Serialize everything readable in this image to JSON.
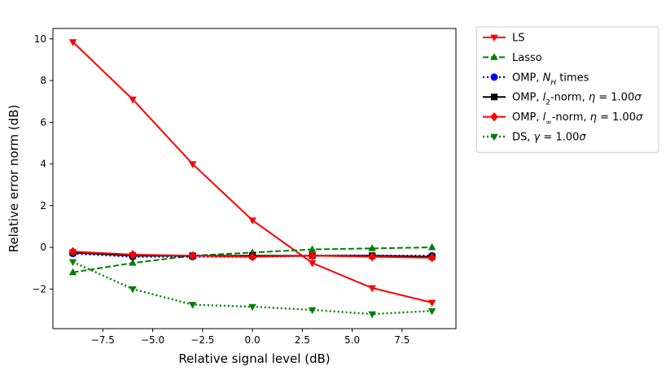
{
  "chart_data": {
    "type": "line",
    "title": "",
    "xlabel": "Relative signal level (dB)",
    "ylabel": "Relative error norm (dB)",
    "xlim": [
      -10.0,
      10.2
    ],
    "ylim": [
      -3.9,
      10.5
    ],
    "xticks": [
      -7.5,
      -5.0,
      -2.5,
      0.0,
      2.5,
      5.0,
      7.5
    ],
    "xtick_labels": [
      "−7.5",
      "−5.0",
      "−2.5",
      "0.0",
      "2.5",
      "5.0",
      "7.5"
    ],
    "yticks": [
      -2,
      0,
      2,
      4,
      6,
      8,
      10
    ],
    "ytick_labels": [
      "−2",
      "0",
      "2",
      "4",
      "6",
      "8",
      "10"
    ],
    "grid": false,
    "legend_position": "outside-top-right",
    "x": [
      -9,
      -6,
      -3,
      0,
      3,
      6,
      9
    ],
    "series": [
      {
        "name": "LS",
        "label_parts": [
          {
            "t": "LS"
          }
        ],
        "color": "#ff0000",
        "marker": "triangle-down",
        "dash": "solid",
        "values": [
          9.85,
          7.1,
          4.0,
          1.3,
          -0.75,
          -1.95,
          -2.65
        ]
      },
      {
        "name": "Lasso",
        "label_parts": [
          {
            "t": "Lasso"
          }
        ],
        "color": "#008000",
        "marker": "triangle-up",
        "dash": "dashed",
        "values": [
          -1.2,
          -0.75,
          -0.4,
          -0.25,
          -0.1,
          -0.05,
          0.0
        ]
      },
      {
        "name": "OMP, N_H times",
        "label_parts": [
          {
            "t": "OMP, "
          },
          {
            "t": "N",
            "i": true
          },
          {
            "t": "H",
            "i": true,
            "sub": true
          },
          {
            "t": " times"
          }
        ],
        "color": "#0000ff",
        "marker": "circle",
        "dash": "dotted",
        "values": [
          -0.3,
          -0.45,
          -0.45,
          -0.45,
          -0.4,
          -0.4,
          -0.4
        ]
      },
      {
        "name": "OMP, l2-norm, η = 1.00σ",
        "label_parts": [
          {
            "t": "OMP, "
          },
          {
            "t": "l",
            "i": true
          },
          {
            "t": "2",
            "sub": true
          },
          {
            "t": "-norm, "
          },
          {
            "t": "η",
            "i": true
          },
          {
            "t": " = 1.00"
          },
          {
            "t": "σ",
            "i": true
          }
        ],
        "color": "#000000",
        "marker": "square",
        "dash": "solid",
        "values": [
          -0.25,
          -0.4,
          -0.4,
          -0.4,
          -0.4,
          -0.4,
          -0.45
        ]
      },
      {
        "name": "OMP, l∞-norm, η = 1.00σ",
        "label_parts": [
          {
            "t": "OMP, "
          },
          {
            "t": "l",
            "i": true
          },
          {
            "t": "∞",
            "sub": true
          },
          {
            "t": "-norm, "
          },
          {
            "t": "η",
            "i": true
          },
          {
            "t": " = 1.00"
          },
          {
            "t": "σ",
            "i": true
          }
        ],
        "color": "#ff0000",
        "marker": "diamond",
        "dash": "solid",
        "values": [
          -0.2,
          -0.35,
          -0.4,
          -0.45,
          -0.4,
          -0.45,
          -0.5
        ]
      },
      {
        "name": "DS, γ = 1.00σ",
        "label_parts": [
          {
            "t": "DS, "
          },
          {
            "t": "γ",
            "i": true
          },
          {
            "t": " = 1.00"
          },
          {
            "t": "σ",
            "i": true
          }
        ],
        "color": "#008000",
        "marker": "triangle-down",
        "dash": "dotted",
        "values": [
          -0.7,
          -2.0,
          -2.75,
          -2.85,
          -3.0,
          -3.2,
          -3.05
        ]
      }
    ]
  }
}
